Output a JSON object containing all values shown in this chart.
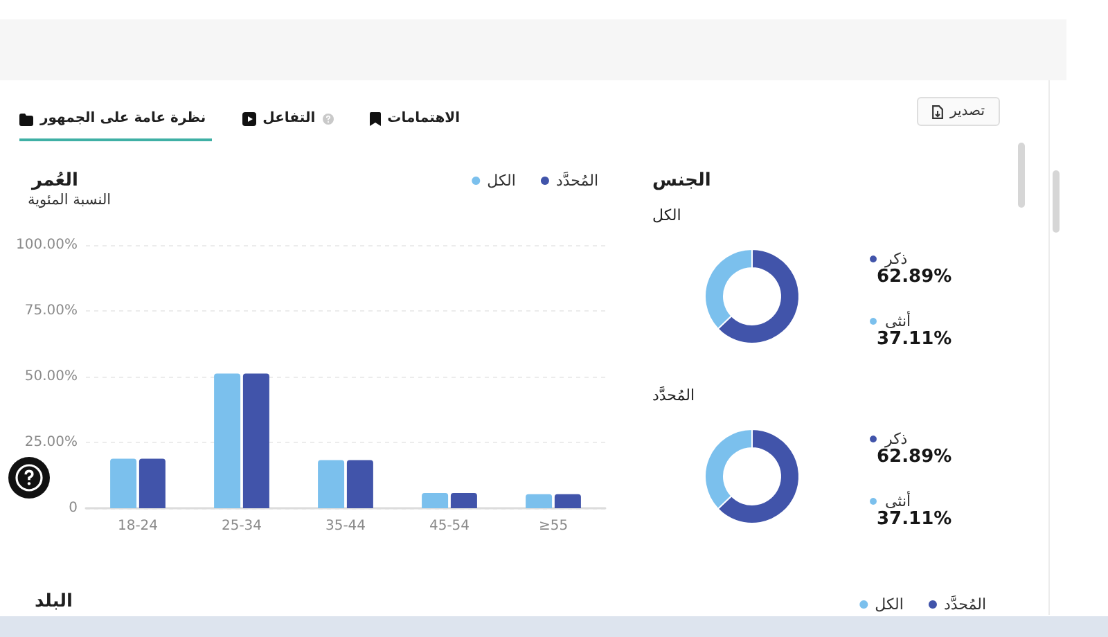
{
  "chart_data": [
    {
      "type": "other",
      "annotations": [
        "نظرة عامة على الجمهور",
        "التفاعل",
        "الاهتمامات",
        "تصدير"
      ]
    },
    {
      "type": "bar",
      "title": "العُمر",
      "ylabel": "النسبة المئوية",
      "categories": [
        "18-24",
        "25-34",
        "35-44",
        "45-54",
        "≥55"
      ],
      "series": [
        {
          "name": "الكل",
          "color": "#7bc0ed",
          "values": [
            18.8,
            51.2,
            18.3,
            5.8,
            5.3
          ]
        },
        {
          "name": "المُحدَّد",
          "color": "#4154aa",
          "values": [
            18.8,
            51.2,
            18.3,
            5.8,
            5.3
          ]
        }
      ],
      "ylim": [
        0,
        100
      ],
      "yticks": [
        0,
        {
          "value": 25,
          "label": "25.00%"
        },
        {
          "value": 50,
          "label": "50.00%"
        },
        {
          "value": 75,
          "label": "75.00%"
        },
        {
          "value": 100,
          "label": "100.00%"
        }
      ],
      "grid": "y",
      "legend": "top right"
    },
    {
      "type": "donut",
      "title": "الجنس",
      "subtitle": "الكل",
      "categories": [
        "ذكر",
        "أنثى"
      ],
      "values": [
        62.89,
        37.11
      ],
      "colors": [
        "#4154aa",
        "#7bc0ed"
      ],
      "value_labels": [
        "62.89%",
        "37.11%"
      ],
      "legend": "right"
    },
    {
      "type": "donut",
      "subtitle": "المُحدَّد",
      "categories": [
        "ذكر",
        "أنثى"
      ],
      "values": [
        62.89,
        37.11
      ],
      "colors": [
        "#4154aa",
        "#7bc0ed"
      ],
      "value_labels": [
        "62.89%",
        "37.11%"
      ],
      "legend": "right"
    },
    {
      "type": "other",
      "title": "البلد",
      "series": [
        {
          "name": "الكل",
          "color": "#7bc0ed"
        },
        {
          "name": "المُحدَّد",
          "color": "#4154aa"
        }
      ],
      "legend": "top right"
    }
  ]
}
